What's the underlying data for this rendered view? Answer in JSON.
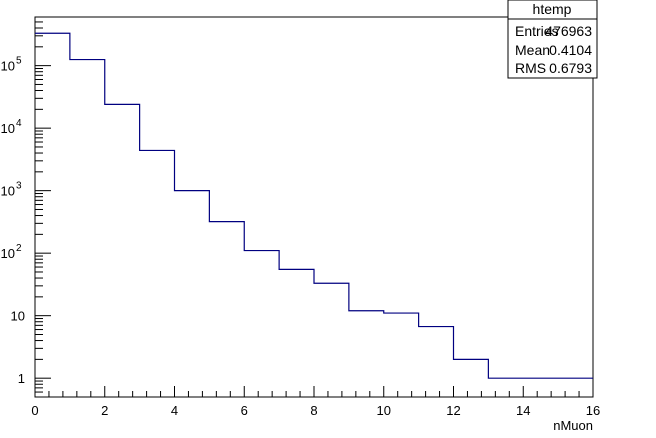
{
  "chart_data": {
    "type": "bar",
    "style": "step-histogram",
    "xlabel": "nMuon",
    "ylabel": "",
    "title": "",
    "xlim": [
      0,
      16
    ],
    "ylim": [
      0.5,
      600000
    ],
    "yscale": "log",
    "grid": false,
    "line_color": "#000080",
    "x_ticks": [
      "0",
      "2",
      "4",
      "6",
      "8",
      "10",
      "12",
      "14",
      "16"
    ],
    "y_ticks": [
      {
        "value": 1,
        "base": "1",
        "exp": ""
      },
      {
        "value": 10,
        "base": "10",
        "exp": ""
      },
      {
        "value": 100,
        "base": "10",
        "exp": "2"
      },
      {
        "value": 1000,
        "base": "10",
        "exp": "3"
      },
      {
        "value": 10000,
        "base": "10",
        "exp": "4"
      },
      {
        "value": 100000,
        "base": "10",
        "exp": "5"
      }
    ],
    "bin_edges": [
      0,
      1,
      2,
      3,
      4,
      5,
      6,
      7,
      8,
      9,
      10,
      11,
      12,
      13,
      14,
      15,
      16
    ],
    "values": [
      330000,
      125000,
      24000,
      4400,
      1000,
      320,
      110,
      55,
      33,
      12,
      11,
      6.7,
      2,
      1,
      1,
      1
    ],
    "stats_box": {
      "title": "htemp",
      "rows": [
        {
          "label": "Entries",
          "value": "476963"
        },
        {
          "label": "Mean",
          "value": "0.4104"
        },
        {
          "label": "RMS",
          "value": "0.6793"
        }
      ]
    }
  }
}
